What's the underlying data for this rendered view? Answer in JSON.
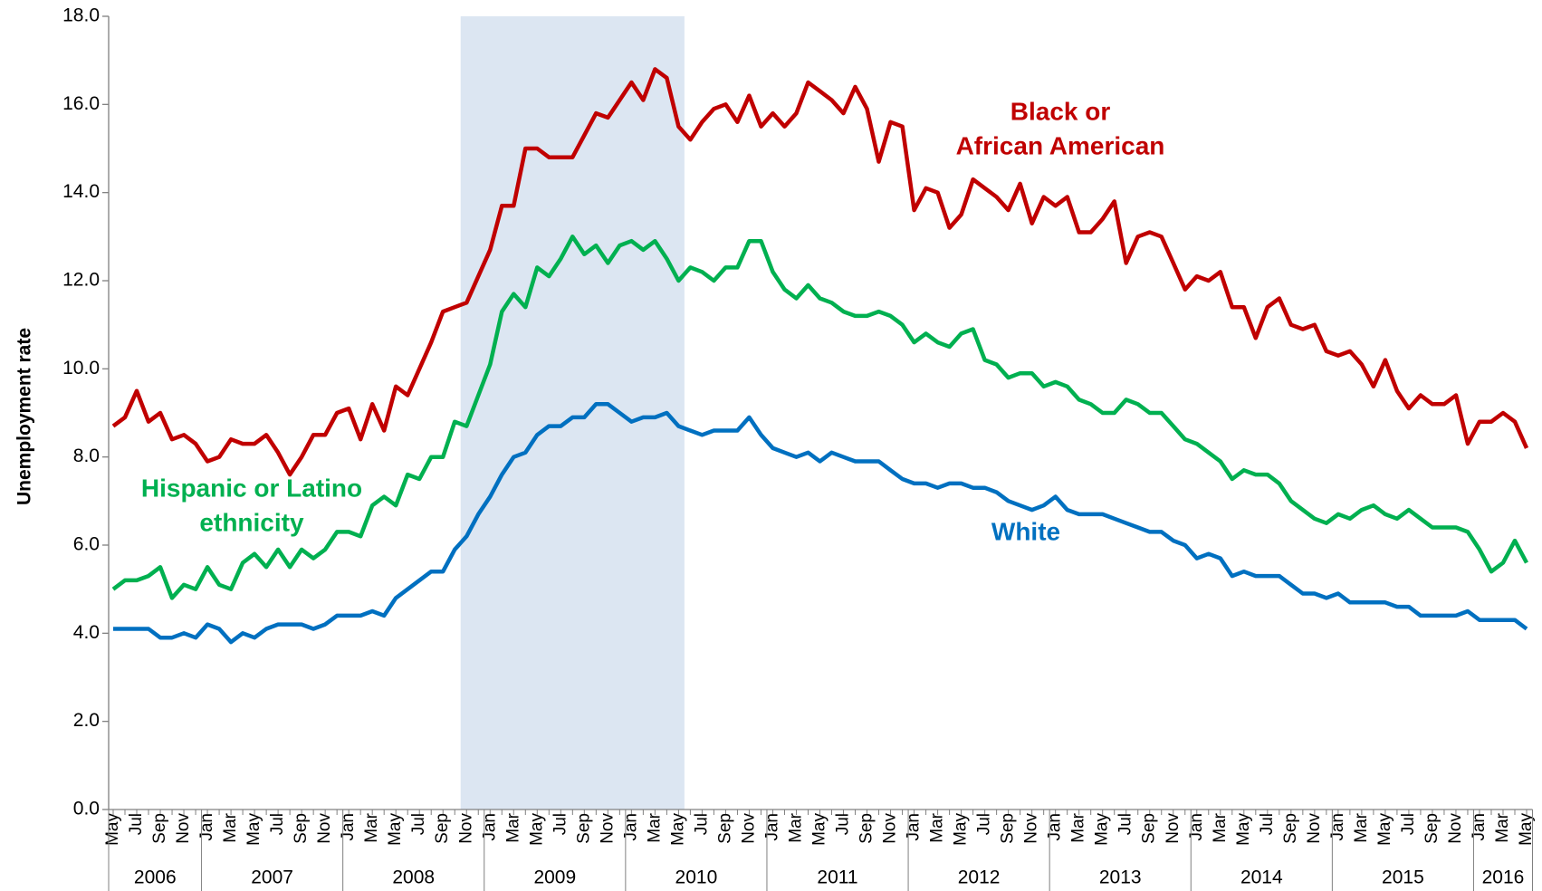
{
  "chart_data": {
    "type": "line",
    "y_label": "Unemployment rate",
    "categories": [
      "May",
      null,
      "Jul",
      null,
      "Sep",
      null,
      "Nov",
      null,
      "Jan",
      null,
      "Mar",
      null,
      "May",
      null,
      "Jul",
      null,
      "Sep",
      null,
      "Nov",
      null,
      "Jan",
      null,
      "Mar",
      null,
      "May",
      null,
      "Jul",
      null,
      "Sep",
      null,
      "Nov",
      null,
      "Jan",
      null,
      "Mar",
      null,
      "May",
      null,
      "Jul",
      null,
      "Sep",
      null,
      "Nov",
      null,
      "Jan",
      null,
      "Mar",
      null,
      "May",
      null,
      "Jul",
      null,
      "Sep",
      null,
      "Nov",
      null,
      "Jan",
      null,
      "Mar",
      null,
      "May",
      null,
      "Jul",
      null,
      "Sep",
      null,
      "Nov",
      null,
      "Jan",
      null,
      "Mar",
      null,
      "May",
      null,
      "Jul",
      null,
      "Sep",
      null,
      "Nov",
      null,
      "Jan",
      null,
      "Mar",
      null,
      "May",
      null,
      "Jul",
      null,
      "Sep",
      null,
      "Nov",
      null,
      "Jan",
      null,
      "Mar",
      null,
      "May",
      null,
      "Jul",
      null,
      "Sep",
      null,
      "Nov",
      null,
      "Jan",
      null,
      "Mar",
      null,
      "May",
      null,
      "Jul",
      null,
      "Sep",
      null,
      "Nov",
      null,
      "Jan",
      null,
      "Mar",
      null,
      "May"
    ],
    "years": [
      {
        "label": "2006",
        "months": 8
      },
      {
        "label": "2007",
        "months": 12
      },
      {
        "label": "2008",
        "months": 12
      },
      {
        "label": "2009",
        "months": 12
      },
      {
        "label": "2010",
        "months": 12
      },
      {
        "label": "2011",
        "months": 12
      },
      {
        "label": "2012",
        "months": 12
      },
      {
        "label": "2013",
        "months": 12
      },
      {
        "label": "2014",
        "months": 12
      },
      {
        "label": "2015",
        "months": 12
      },
      {
        "label": "2016",
        "months": 5
      }
    ],
    "shaded_range": [
      30,
      48
    ],
    "shade_color": "#dce6f2",
    "ylim": [
      0,
      18
    ],
    "yticks": [
      {
        "value": 0,
        "label": "0.0"
      },
      {
        "value": 2,
        "label": "2.0"
      },
      {
        "value": 4,
        "label": "4.0"
      },
      {
        "value": 6,
        "label": "6.0"
      },
      {
        "value": 8,
        "label": "8.0"
      },
      {
        "value": 10,
        "label": "10.0"
      },
      {
        "value": 12,
        "label": "12.0"
      },
      {
        "value": 14,
        "label": "14.0"
      },
      {
        "value": 16,
        "label": "16.0"
      },
      {
        "value": 18,
        "label": "18.0"
      }
    ],
    "series": [
      {
        "name": [
          "Black or",
          "African American"
        ],
        "color": "#c00000",
        "values": [
          8.7,
          8.9,
          9.5,
          8.8,
          9.0,
          8.4,
          8.5,
          8.3,
          7.9,
          8.0,
          8.4,
          8.3,
          8.3,
          8.5,
          8.1,
          7.6,
          8.0,
          8.5,
          8.5,
          9.0,
          9.1,
          8.4,
          9.2,
          8.6,
          9.6,
          9.4,
          10.0,
          10.6,
          11.3,
          11.4,
          11.5,
          12.1,
          12.7,
          13.7,
          13.7,
          15.0,
          15.0,
          14.8,
          14.8,
          14.8,
          15.3,
          15.8,
          15.7,
          16.1,
          16.5,
          16.1,
          16.8,
          16.6,
          15.5,
          15.2,
          15.6,
          15.9,
          16.0,
          15.6,
          16.2,
          15.5,
          15.8,
          15.5,
          15.8,
          16.5,
          16.3,
          16.1,
          15.8,
          16.4,
          15.9,
          14.7,
          15.6,
          15.5,
          13.6,
          14.1,
          14.0,
          13.2,
          13.5,
          14.3,
          14.1,
          13.9,
          13.6,
          14.2,
          13.3,
          13.9,
          13.7,
          13.9,
          13.1,
          13.1,
          13.4,
          13.8,
          12.4,
          13.0,
          13.1,
          13.0,
          12.4,
          11.8,
          12.1,
          12.0,
          12.2,
          11.4,
          11.4,
          10.7,
          11.4,
          11.6,
          11.0,
          10.9,
          11.0,
          10.4,
          10.3,
          10.4,
          10.1,
          9.6,
          10.2,
          9.5,
          9.1,
          9.4,
          9.2,
          9.2,
          9.4,
          8.3,
          8.8,
          8.8,
          9.0,
          8.8,
          8.2
        ]
      },
      {
        "name": [
          "Hispanic or Latino",
          "ethnicity"
        ],
        "color": "#00b050",
        "values": [
          5.0,
          5.2,
          5.2,
          5.3,
          5.5,
          4.8,
          5.1,
          5.0,
          5.5,
          5.1,
          5.0,
          5.6,
          5.8,
          5.5,
          5.9,
          5.5,
          5.9,
          5.7,
          5.9,
          6.3,
          6.3,
          6.2,
          6.9,
          7.1,
          6.9,
          7.6,
          7.5,
          8.0,
          8.0,
          8.8,
          8.7,
          9.4,
          10.1,
          11.3,
          11.7,
          11.4,
          12.3,
          12.1,
          12.5,
          13.0,
          12.6,
          12.8,
          12.4,
          12.8,
          12.9,
          12.7,
          12.9,
          12.5,
          12.0,
          12.3,
          12.2,
          12.0,
          12.3,
          12.3,
          12.9,
          12.9,
          12.2,
          11.8,
          11.6,
          11.9,
          11.6,
          11.5,
          11.3,
          11.2,
          11.2,
          11.3,
          11.2,
          11.0,
          10.6,
          10.8,
          10.6,
          10.5,
          10.8,
          10.9,
          10.2,
          10.1,
          9.8,
          9.9,
          9.9,
          9.6,
          9.7,
          9.6,
          9.3,
          9.2,
          9.0,
          9.0,
          9.3,
          9.2,
          9.0,
          9.0,
          8.7,
          8.4,
          8.3,
          8.1,
          7.9,
          7.5,
          7.7,
          7.6,
          7.6,
          7.4,
          7.0,
          6.8,
          6.6,
          6.5,
          6.7,
          6.6,
          6.8,
          6.9,
          6.7,
          6.6,
          6.8,
          6.6,
          6.4,
          6.4,
          6.4,
          6.3,
          5.9,
          5.4,
          5.6,
          6.1,
          5.6
        ]
      },
      {
        "name": [
          "White"
        ],
        "color": "#0070c0",
        "values": [
          4.1,
          4.1,
          4.1,
          4.1,
          3.9,
          3.9,
          4.0,
          3.9,
          4.2,
          4.1,
          3.8,
          4.0,
          3.9,
          4.1,
          4.2,
          4.2,
          4.2,
          4.1,
          4.2,
          4.4,
          4.4,
          4.4,
          4.5,
          4.4,
          4.8,
          5.0,
          5.2,
          5.4,
          5.4,
          5.9,
          6.2,
          6.7,
          7.1,
          7.6,
          8.0,
          8.1,
          8.5,
          8.7,
          8.7,
          8.9,
          8.9,
          9.2,
          9.2,
          9.0,
          8.8,
          8.9,
          8.9,
          9.0,
          8.7,
          8.6,
          8.5,
          8.6,
          8.6,
          8.6,
          8.9,
          8.5,
          8.2,
          8.1,
          8.0,
          8.1,
          7.9,
          8.1,
          8.0,
          7.9,
          7.9,
          7.9,
          7.7,
          7.5,
          7.4,
          7.4,
          7.3,
          7.4,
          7.4,
          7.3,
          7.3,
          7.2,
          7.0,
          6.9,
          6.8,
          6.9,
          7.1,
          6.8,
          6.7,
          6.7,
          6.7,
          6.6,
          6.5,
          6.4,
          6.3,
          6.3,
          6.1,
          6.0,
          5.7,
          5.8,
          5.7,
          5.3,
          5.4,
          5.3,
          5.3,
          5.3,
          5.1,
          4.9,
          4.9,
          4.8,
          4.9,
          4.7,
          4.7,
          4.7,
          4.7,
          4.6,
          4.6,
          4.4,
          4.4,
          4.4,
          4.4,
          4.5,
          4.3,
          4.3,
          4.3,
          4.3,
          4.1
        ]
      }
    ]
  }
}
